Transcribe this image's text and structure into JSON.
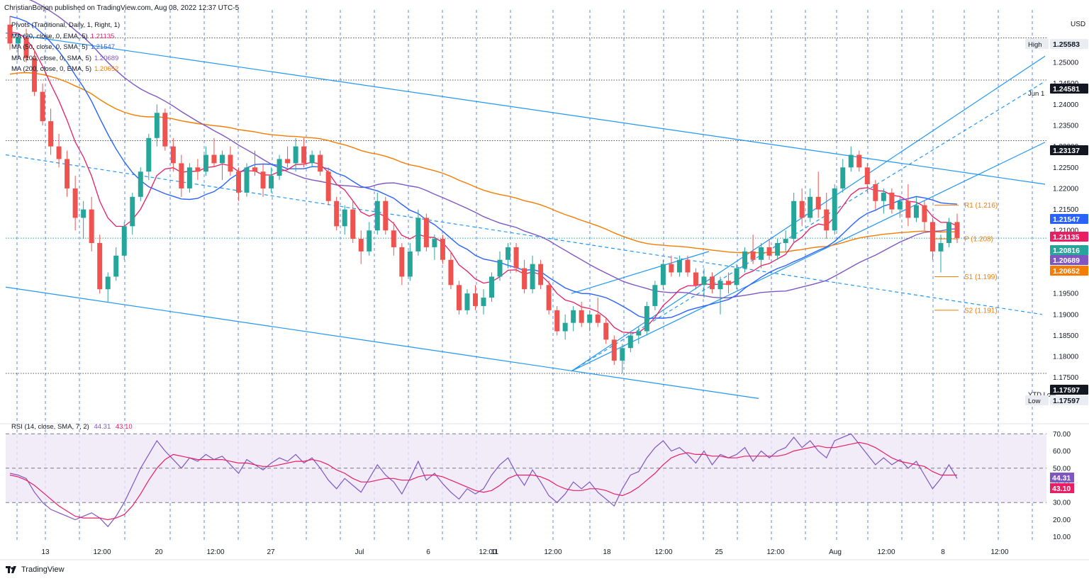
{
  "header": {
    "text": "ChristianBorjon published on TradingView.com, Aug 08, 2022 12:37 UTC-5"
  },
  "legend": [
    {
      "label": "Pivots (Traditional, Daily, 1, Right, 1)",
      "value": "",
      "color": "#131722"
    },
    {
      "label": "MA (20, close, 0, EMA, 5)",
      "value": "1.21135",
      "color": "#e91e63"
    },
    {
      "label": "MA (50, close, 0, SMA, 5)",
      "value": "1.21547",
      "color": "#2962ff"
    },
    {
      "label": "MA (100, close, 0, SMA, 5)",
      "value": "1.20689",
      "color": "#7e57c2"
    },
    {
      "label": "MA (200, close, 0, EMA, 5)",
      "value": "1.20652",
      "color": "#f57c00"
    }
  ],
  "rsi_legend": {
    "label": "RSI (14, close, SMA, 7, 2)",
    "v1": "44.31",
    "v2": "43.10"
  },
  "footer": {
    "brand": "TradingView"
  },
  "colors": {
    "up": "#26a69a",
    "down": "#ef5350",
    "grid_v": "#2962ff",
    "channel": "#2196f3",
    "ema20": "#e91e63",
    "sma50": "#2962ff",
    "sma100": "#7e57c2",
    "ema200": "#f57c00",
    "pivot": "#f57c00",
    "rsi": "#7e57c2",
    "rsi_ma": "#e91e63",
    "rsi_band": "#ede7f6"
  },
  "chart_data": {
    "type": "candlestick",
    "symbol": "EURUSD",
    "currency": "USD",
    "price_axis": {
      "min": 1.165,
      "max": 1.2625,
      "ticks": [
        "1.17000",
        "1.17500",
        "1.18000",
        "1.18500",
        "1.19000",
        "1.19500",
        "1.20000",
        "1.20500",
        "1.21000",
        "1.21500",
        "1.22000",
        "1.22500",
        "1.23000",
        "1.23500",
        "1.24000",
        "1.24500",
        "1.25000",
        "1.25500"
      ]
    },
    "x_labels": [
      "13",
      "12:00",
      "20",
      "12:00",
      "27",
      "Jul",
      "6",
      "12:00",
      "11",
      "12:00",
      "18",
      "12:00",
      "25",
      "12:00",
      "Aug",
      "12:00",
      "8",
      "12:00"
    ],
    "price_labels": [
      {
        "text": "High",
        "value": "1.25583",
        "price": 1.25583,
        "style": "gray"
      },
      {
        "text": "Jun 1",
        "value": "1.24581",
        "price": 1.24581,
        "style": "dark"
      },
      {
        "text": "",
        "value": "1.23137",
        "price": 1.23137,
        "style": "dark"
      },
      {
        "text": "",
        "value": "1.21547",
        "price": 1.21547,
        "style": "blue"
      },
      {
        "text": "",
        "value": "1.21135",
        "price": 1.21135,
        "style": "pink"
      },
      {
        "text": "",
        "value": "1.20816",
        "price": 1.20816,
        "style": "green"
      },
      {
        "text": "",
        "value": "1.20689",
        "price": 1.20689,
        "style": "purple"
      },
      {
        "text": "",
        "value": "1.20652",
        "price": 1.20652,
        "style": "orange"
      },
      {
        "text": "YTD Low",
        "value": "1.17597",
        "price": 1.17597,
        "style": "dark"
      },
      {
        "text": "Low",
        "value": "1.17597",
        "price": 1.17597,
        "style": "gray"
      }
    ],
    "pivots": [
      {
        "label": "R1 (1.216)",
        "price": 1.216
      },
      {
        "label": "P (1.208)",
        "price": 1.208
      },
      {
        "label": "S1 (1.199)",
        "price": 1.199
      },
      {
        "label": "S2 (1.191)",
        "price": 1.191
      }
    ],
    "candles": [
      [
        1.259,
        1.261,
        1.253,
        1.2545
      ],
      [
        1.2545,
        1.257,
        1.251,
        1.256
      ],
      [
        1.256,
        1.258,
        1.25,
        1.251
      ],
      [
        1.251,
        1.253,
        1.242,
        1.243
      ],
      [
        1.243,
        1.245,
        1.235,
        1.236
      ],
      [
        1.236,
        1.239,
        1.228,
        1.23
      ],
      [
        1.23,
        1.233,
        1.225,
        1.227
      ],
      [
        1.227,
        1.229,
        1.218,
        1.22
      ],
      [
        1.22,
        1.223,
        1.21,
        1.213
      ],
      [
        1.213,
        1.217,
        1.208,
        1.215
      ],
      [
        1.215,
        1.218,
        1.205,
        1.207
      ],
      [
        1.207,
        1.209,
        1.195,
        1.196
      ],
      [
        1.196,
        1.2,
        1.193,
        1.199
      ],
      [
        1.199,
        1.206,
        1.198,
        1.204
      ],
      [
        1.204,
        1.212,
        1.203,
        1.211
      ],
      [
        1.211,
        1.219,
        1.209,
        1.218
      ],
      [
        1.218,
        1.225,
        1.217,
        1.224
      ],
      [
        1.224,
        1.233,
        1.222,
        1.232
      ],
      [
        1.232,
        1.24,
        1.23,
        1.238
      ],
      [
        1.238,
        1.239,
        1.229,
        1.23
      ],
      [
        1.23,
        1.232,
        1.224,
        1.226
      ],
      [
        1.226,
        1.228,
        1.218,
        1.22
      ],
      [
        1.22,
        1.226,
        1.219,
        1.225
      ],
      [
        1.225,
        1.227,
        1.222,
        1.224
      ],
      [
        1.224,
        1.23,
        1.223,
        1.228
      ],
      [
        1.228,
        1.232,
        1.225,
        1.226
      ],
      [
        1.226,
        1.229,
        1.222,
        1.228
      ],
      [
        1.228,
        1.23,
        1.223,
        1.224
      ],
      [
        1.224,
        1.225,
        1.217,
        1.219
      ],
      [
        1.219,
        1.226,
        1.218,
        1.225
      ],
      [
        1.225,
        1.229,
        1.223,
        1.224
      ],
      [
        1.224,
        1.226,
        1.218,
        1.22
      ],
      [
        1.22,
        1.225,
        1.219,
        1.223
      ],
      [
        1.223,
        1.228,
        1.222,
        1.227
      ],
      [
        1.227,
        1.23,
        1.225,
        1.226
      ],
      [
        1.226,
        1.232,
        1.224,
        1.23
      ],
      [
        1.23,
        1.232,
        1.225,
        1.226
      ],
      [
        1.226,
        1.229,
        1.225,
        1.228
      ],
      [
        1.228,
        1.229,
        1.223,
        1.224
      ],
      [
        1.224,
        1.225,
        1.216,
        1.217
      ],
      [
        1.217,
        1.218,
        1.21,
        1.211
      ],
      [
        1.211,
        1.216,
        1.209,
        1.215
      ],
      [
        1.215,
        1.217,
        1.207,
        1.208
      ],
      [
        1.208,
        1.21,
        1.202,
        1.205
      ],
      [
        1.205,
        1.212,
        1.204,
        1.21
      ],
      [
        1.21,
        1.219,
        1.209,
        1.217
      ],
      [
        1.217,
        1.218,
        1.209,
        1.21
      ],
      [
        1.21,
        1.212,
        1.204,
        1.206
      ],
      [
        1.206,
        1.207,
        1.197,
        1.199
      ],
      [
        1.199,
        1.207,
        1.198,
        1.205
      ],
      [
        1.205,
        1.215,
        1.204,
        1.213
      ],
      [
        1.213,
        1.214,
        1.205,
        1.206
      ],
      [
        1.206,
        1.209,
        1.203,
        1.208
      ],
      [
        1.208,
        1.209,
        1.202,
        1.203
      ],
      [
        1.203,
        1.205,
        1.196,
        1.197
      ],
      [
        1.197,
        1.198,
        1.19,
        1.191
      ],
      [
        1.191,
        1.196,
        1.19,
        1.195
      ],
      [
        1.195,
        1.197,
        1.191,
        1.192
      ],
      [
        1.192,
        1.196,
        1.19,
        1.194
      ],
      [
        1.194,
        1.2,
        1.193,
        1.199
      ],
      [
        1.199,
        1.205,
        1.198,
        1.203
      ],
      [
        1.203,
        1.207,
        1.201,
        1.206
      ],
      [
        1.206,
        1.207,
        1.2,
        1.201
      ],
      [
        1.201,
        1.203,
        1.195,
        1.196
      ],
      [
        1.196,
        1.204,
        1.195,
        1.202
      ],
      [
        1.202,
        1.203,
        1.196,
        1.197
      ],
      [
        1.197,
        1.198,
        1.19,
        1.191
      ],
      [
        1.191,
        1.192,
        1.185,
        1.186
      ],
      [
        1.186,
        1.19,
        1.184,
        1.188
      ],
      [
        1.188,
        1.192,
        1.186,
        1.191
      ],
      [
        1.191,
        1.193,
        1.187,
        1.188
      ],
      [
        1.188,
        1.191,
        1.186,
        1.19
      ],
      [
        1.19,
        1.194,
        1.187,
        1.188
      ],
      [
        1.188,
        1.189,
        1.183,
        1.184
      ],
      [
        1.184,
        1.185,
        1.178,
        1.179
      ],
      [
        1.179,
        1.183,
        1.176,
        1.182
      ],
      [
        1.182,
        1.186,
        1.181,
        1.185
      ],
      [
        1.185,
        1.187,
        1.183,
        1.186
      ],
      [
        1.186,
        1.193,
        1.185,
        1.192
      ],
      [
        1.192,
        1.198,
        1.191,
        1.197
      ],
      [
        1.197,
        1.203,
        1.196,
        1.202
      ],
      [
        1.202,
        1.204,
        1.199,
        1.2
      ],
      [
        1.2,
        1.204,
        1.199,
        1.203
      ],
      [
        1.203,
        1.204,
        1.199,
        1.2
      ],
      [
        1.2,
        1.201,
        1.196,
        1.197
      ],
      [
        1.197,
        1.201,
        1.194,
        1.199
      ],
      [
        1.199,
        1.2,
        1.195,
        1.196
      ],
      [
        1.196,
        1.199,
        1.19,
        1.198
      ],
      [
        1.198,
        1.2,
        1.195,
        1.197
      ],
      [
        1.197,
        1.202,
        1.196,
        1.201
      ],
      [
        1.201,
        1.206,
        1.2,
        1.205
      ],
      [
        1.205,
        1.209,
        1.202,
        1.203
      ],
      [
        1.203,
        1.207,
        1.201,
        1.206
      ],
      [
        1.206,
        1.208,
        1.203,
        1.204
      ],
      [
        1.204,
        1.208,
        1.203,
        1.207
      ],
      [
        1.207,
        1.21,
        1.205,
        1.208
      ],
      [
        1.208,
        1.219,
        1.207,
        1.217
      ],
      [
        1.217,
        1.22,
        1.211,
        1.213
      ],
      [
        1.213,
        1.22,
        1.212,
        1.218
      ],
      [
        1.218,
        1.224,
        1.213,
        1.215
      ],
      [
        1.215,
        1.219,
        1.208,
        1.21
      ],
      [
        1.21,
        1.221,
        1.209,
        1.22
      ],
      [
        1.22,
        1.227,
        1.219,
        1.225
      ],
      [
        1.225,
        1.23,
        1.224,
        1.228
      ],
      [
        1.228,
        1.229,
        1.224,
        1.225
      ],
      [
        1.225,
        1.226,
        1.219,
        1.221
      ],
      [
        1.221,
        1.222,
        1.215,
        1.217
      ],
      [
        1.217,
        1.22,
        1.214,
        1.219
      ],
      [
        1.219,
        1.22,
        1.214,
        1.215
      ],
      [
        1.215,
        1.218,
        1.213,
        1.217
      ],
      [
        1.217,
        1.221,
        1.211,
        1.213
      ],
      [
        1.213,
        1.218,
        1.212,
        1.216
      ],
      [
        1.216,
        1.217,
        1.21,
        1.212
      ],
      [
        1.212,
        1.213,
        1.203,
        1.205
      ],
      [
        1.205,
        1.209,
        1.2,
        1.207
      ],
      [
        1.207,
        1.213,
        1.206,
        1.212
      ],
      [
        1.212,
        1.214,
        1.207,
        1.2082
      ]
    ],
    "rsi_axis": {
      "min": 10,
      "max": 70,
      "ticks": [
        "70.00",
        "60.00",
        "50.00",
        "40.00",
        "30.00",
        "20.00",
        "10.00"
      ],
      "levels": [
        70,
        50,
        30
      ]
    },
    "rsi": [
      47,
      46,
      44,
      36,
      30,
      26,
      24,
      22,
      20,
      22,
      24,
      21,
      16,
      22,
      30,
      40,
      50,
      58,
      66,
      60,
      55,
      50,
      56,
      54,
      58,
      55,
      57,
      52,
      47,
      55,
      52,
      49,
      53,
      56,
      54,
      58,
      53,
      56,
      50,
      43,
      38,
      44,
      40,
      36,
      44,
      52,
      46,
      42,
      35,
      44,
      54,
      43,
      47,
      41,
      36,
      32,
      38,
      35,
      38,
      46,
      52,
      56,
      47,
      40,
      49,
      42,
      34,
      30,
      35,
      42,
      38,
      42,
      36,
      32,
      28,
      38,
      46,
      48,
      56,
      62,
      66,
      60,
      62,
      58,
      53,
      60,
      52,
      58,
      56,
      58,
      62,
      54,
      60,
      56,
      60,
      62,
      68,
      62,
      66,
      60,
      56,
      66,
      68,
      70,
      64,
      58,
      52,
      56,
      52,
      55,
      50,
      54,
      46,
      38,
      44,
      52,
      44
    ],
    "rsi_ma": [
      46,
      45,
      43,
      40,
      36,
      32,
      28,
      25,
      22,
      21,
      21,
      21,
      20,
      21,
      23,
      28,
      35,
      43,
      50,
      55,
      58,
      57,
      56,
      55,
      55,
      55,
      55,
      54,
      53,
      53,
      52,
      51,
      51,
      52,
      53,
      54,
      54,
      55,
      54,
      52,
      49,
      47,
      44,
      42,
      42,
      43,
      44,
      44,
      43,
      43,
      45,
      46,
      46,
      45,
      43,
      41,
      39,
      37,
      36,
      37,
      40,
      44,
      46,
      46,
      46,
      45,
      43,
      40,
      38,
      37,
      37,
      38,
      38,
      37,
      35,
      34,
      36,
      39,
      43,
      47,
      52,
      56,
      58,
      59,
      58,
      58,
      57,
      57,
      56,
      56,
      57,
      57,
      57,
      57,
      57,
      58,
      60,
      61,
      62,
      63,
      62,
      62,
      63,
      64,
      65,
      64,
      62,
      59,
      56,
      54,
      53,
      52,
      51,
      48,
      46,
      46,
      46
    ]
  }
}
